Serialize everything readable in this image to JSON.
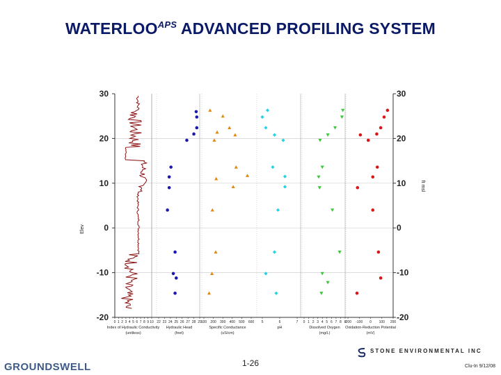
{
  "title_main": "WATERLOO",
  "title_sup": "APS",
  "title_rest": " ADVANCED PROFILING SYSTEM",
  "footer": {
    "left": "GROUNDSWELL",
    "page": "1-26",
    "right": "Clu-In 9/12/08",
    "company": "STONE ENVIRONMENTAL INC"
  },
  "colors": {
    "title": "#0b1a66",
    "profile": "#8b1010",
    "hydraulic_head": "#1a1ab0",
    "specific_conductance": "#e08a10",
    "ph": "#22d4e6",
    "dissolved_oxygen": "#3cc83c",
    "orp": "#d81818"
  },
  "chart_data": {
    "type": "scatter",
    "y_axis": {
      "ylim": [
        -20,
        30
      ],
      "ticks": [
        "30",
        "20",
        "10",
        "0",
        "-10",
        "-20"
      ]
    },
    "side_label_left": "Elev",
    "side_label_right": "ft msl",
    "panels": [
      {
        "name": "ihc",
        "label1": "Index of Hydraulic Conductivity",
        "label2": "(unitless)",
        "ticks": [
          "0",
          "1",
          "2",
          "3",
          "4",
          "5",
          "6",
          "7",
          "8",
          "9",
          "10"
        ],
        "xlim": [
          0,
          10
        ],
        "series_type": "line"
      },
      {
        "name": "hydraulic_head",
        "label1": "Hydraulic Head",
        "label2": "(feet)",
        "ticks": [
          "22",
          "23",
          "24",
          "25",
          "26",
          "27",
          "28",
          "29"
        ],
        "xlim": [
          22,
          29
        ],
        "series_type": "scatter",
        "marker": "circle",
        "points": [
          [
            28.4,
            26.0
          ],
          [
            28.5,
            24.8
          ],
          [
            28.5,
            22.4
          ],
          [
            28.0,
            21.0
          ],
          [
            26.8,
            19.6
          ],
          [
            24.1,
            13.6
          ],
          [
            23.8,
            11.4
          ],
          [
            23.8,
            9.0
          ],
          [
            23.5,
            4.0
          ],
          [
            24.8,
            -5.4
          ],
          [
            24.5,
            -10.2
          ],
          [
            25.0,
            -11.2
          ],
          [
            24.8,
            -14.6
          ]
        ]
      },
      {
        "name": "specific_conductance",
        "label1": "Specific Conductance",
        "label2": "(uS/cm)",
        "ticks": [
          "100",
          "200",
          "300",
          "400",
          "500",
          "600"
        ],
        "xlim": [
          100,
          600
        ],
        "series_type": "scatter",
        "marker": "triangle-up",
        "points": [
          [
            165,
            26.3
          ],
          [
            300,
            25.0
          ],
          [
            370,
            22.4
          ],
          [
            240,
            21.4
          ],
          [
            430,
            20.8
          ],
          [
            210,
            19.6
          ],
          [
            440,
            13.6
          ],
          [
            560,
            11.7
          ],
          [
            230,
            11.0
          ],
          [
            410,
            9.2
          ],
          [
            190,
            4.0
          ],
          [
            225,
            -5.4
          ],
          [
            185,
            -10.2
          ],
          [
            155,
            -14.6
          ]
        ]
      },
      {
        "name": "ph",
        "label1": "pH",
        "label2": "",
        "ticks": [
          "5",
          "6",
          "7"
        ],
        "xlim": [
          4.8,
          7.2
        ],
        "series_type": "scatter",
        "marker": "diamond",
        "points": [
          [
            5.3,
            26.3
          ],
          [
            5.0,
            24.8
          ],
          [
            5.2,
            22.4
          ],
          [
            5.7,
            20.8
          ],
          [
            6.2,
            19.6
          ],
          [
            5.6,
            13.6
          ],
          [
            6.3,
            11.5
          ],
          [
            6.3,
            9.2
          ],
          [
            5.9,
            4.0
          ],
          [
            5.7,
            -5.4
          ],
          [
            5.2,
            -10.2
          ],
          [
            5.8,
            -14.6
          ]
        ]
      },
      {
        "name": "dissolved_oxygen",
        "label1": "Dissolved Oxygen",
        "label2": "(mg/L)",
        "ticks": [
          "0",
          "1",
          "2",
          "3",
          "4",
          "5",
          "6",
          "7",
          "8",
          "9"
        ],
        "xlim": [
          0,
          9
        ],
        "series_type": "scatter",
        "marker": "triangle-down",
        "points": [
          [
            8.5,
            26.3
          ],
          [
            8.3,
            24.8
          ],
          [
            6.8,
            22.4
          ],
          [
            5.2,
            20.8
          ],
          [
            3.5,
            19.6
          ],
          [
            4.0,
            13.6
          ],
          [
            3.2,
            11.4
          ],
          [
            3.4,
            9.0
          ],
          [
            6.2,
            4.0
          ],
          [
            7.8,
            -5.4
          ],
          [
            4.0,
            -10.2
          ],
          [
            5.2,
            -12.2
          ],
          [
            3.8,
            -14.6
          ]
        ]
      },
      {
        "name": "orp",
        "label1": "Oxidation-Reduction Potential",
        "label2": "(mV)",
        "ticks": [
          "-200",
          "-100",
          "0",
          "100",
          "200"
        ],
        "xlim": [
          -200,
          200
        ],
        "series_type": "scatter",
        "marker": "circle",
        "points": [
          [
            150,
            26.3
          ],
          [
            120,
            24.8
          ],
          [
            90,
            22.4
          ],
          [
            55,
            21.0
          ],
          [
            -90,
            20.8
          ],
          [
            -20,
            19.6
          ],
          [
            60,
            13.6
          ],
          [
            20,
            11.4
          ],
          [
            -115,
            9.0
          ],
          [
            20,
            4.0
          ],
          [
            70,
            -5.4
          ],
          [
            90,
            -11.2
          ],
          [
            -120,
            -14.6
          ]
        ]
      }
    ]
  }
}
